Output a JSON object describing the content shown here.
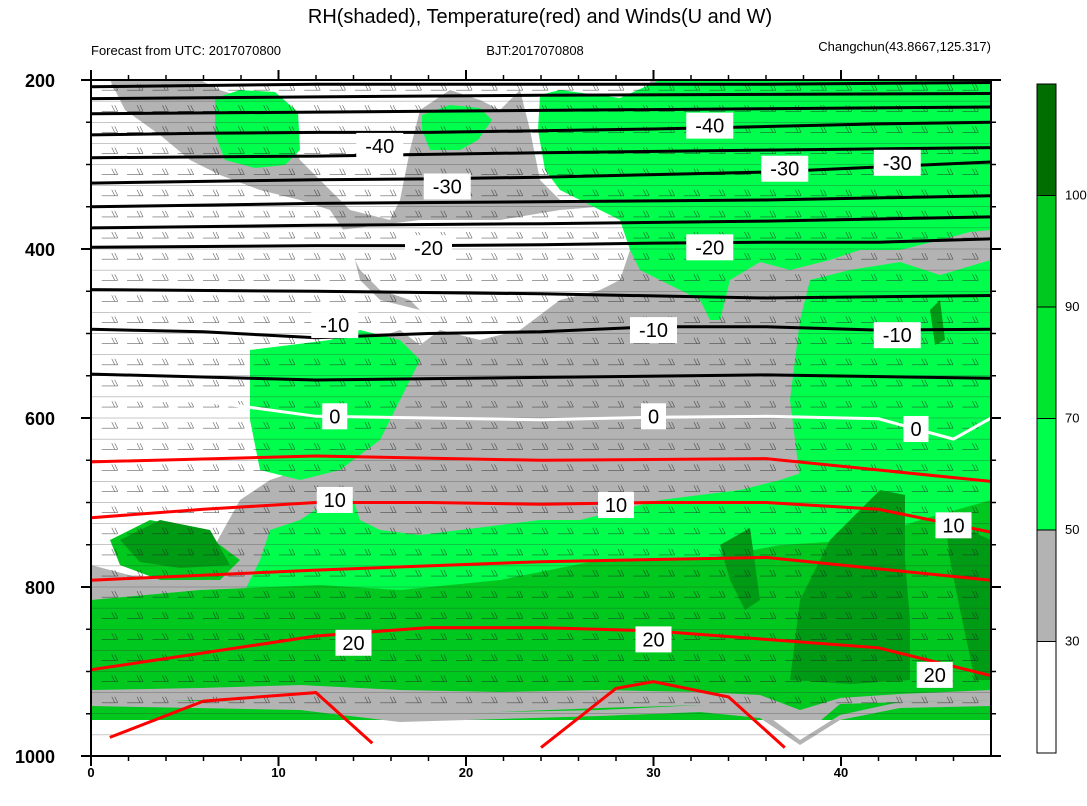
{
  "title": "RH(shaded), Temperature(red) and Winds(U and W)",
  "subtitle_left": "Forecast from UTC: 2017070800",
  "subtitle_center": "BJT:2017070808",
  "subtitle_right": "Changchun(43.8667,125.317)",
  "colors": {
    "white": "#ffffff",
    "gray": "#b3b3b3",
    "green1": "#00ff4c",
    "green2": "#00e62e",
    "green3": "#00c81e",
    "green4": "#009b14",
    "green5": "#006e00",
    "temp_red": "#ff0000",
    "temp_zero": "#ffffff",
    "temp_black": "#000000"
  },
  "chart_data": {
    "type": "heatmap",
    "title": "RH(shaded), Temperature(red) and Winds(U and W)",
    "xlim": [
      0,
      48
    ],
    "ylim": [
      1000,
      200
    ],
    "x_ticks": [
      "0",
      "10",
      "20",
      "30",
      "40"
    ],
    "x_tick_values": [
      0,
      10,
      20,
      30,
      40
    ],
    "y_ticks": [
      "200",
      "400",
      "600",
      "800",
      "1000"
    ],
    "y_tick_values": [
      200,
      400,
      600,
      800,
      1000
    ],
    "y_scale": "linear",
    "colorbar": {
      "levels": [
        30,
        50,
        70,
        90,
        100
      ],
      "labels": [
        "30",
        "50",
        "70",
        "90",
        "100"
      ],
      "colors": [
        "#ffffff",
        "#b3b3b3",
        "#00ff4c",
        "#00e62e",
        "#00c81e",
        "#006e00"
      ]
    },
    "temperature_contours": [
      {
        "label": "-40",
        "values_x": [
          0,
          6,
          12,
          18,
          24,
          30,
          36,
          42,
          48
        ],
        "pressure": [
          265,
          263,
          262,
          262,
          260,
          258,
          255,
          252,
          250
        ],
        "color": "#000000",
        "label_x": 15,
        "label_p": 280
      },
      {
        "label": "-30",
        "values_x": [
          0,
          6,
          12,
          18,
          24,
          30,
          36,
          42,
          48
        ],
        "pressure": [
          322,
          320,
          318,
          317,
          315,
          312,
          309,
          303,
          297
        ],
        "color": "#000000",
        "label_x": 19,
        "label_p": 325
      },
      {
        "label": "-20",
        "values_x": [
          0,
          6,
          12,
          18,
          24,
          30,
          36,
          42,
          48
        ],
        "pressure": [
          398,
          397,
          396,
          396,
          395,
          393,
          392,
          392,
          388
        ],
        "color": "#000000",
        "label_x": 18,
        "label_p": 400
      },
      {
        "label": "-10",
        "values_x": [
          0,
          6,
          12,
          18,
          24,
          30,
          36,
          42,
          48
        ],
        "pressure": [
          495,
          498,
          505,
          500,
          498,
          492,
          492,
          496,
          495
        ],
        "color": "#000000",
        "label_x": 13,
        "label_p": 490
      },
      {
        "label": "0",
        "values_x": [
          0,
          6,
          12,
          18,
          24,
          30,
          36,
          42,
          46,
          48
        ],
        "pressure": [
          578,
          580,
          598,
          600,
          602,
          599,
          598,
          601,
          625,
          600
        ],
        "color": "#ffffff",
        "label_x": 13,
        "label_p": 598
      },
      {
        "label": "10",
        "values_x": [
          0,
          6,
          12,
          18,
          24,
          30,
          36,
          42,
          48
        ],
        "pressure": [
          718,
          708,
          700,
          700,
          702,
          700,
          700,
          708,
          735
        ],
        "color": "#ff0000",
        "label_x": 13,
        "label_p": 696
      },
      {
        "label": "20",
        "values_x": [
          0,
          6,
          12,
          18,
          24,
          30,
          36,
          42,
          48
        ],
        "pressure": [
          898,
          878,
          858,
          848,
          848,
          852,
          862,
          872,
          905
        ],
        "color": "#ff0000",
        "label_x": 14,
        "label_p": 866
      }
    ],
    "contour_labels": [
      "-40",
      "-30",
      "-20",
      "-10",
      "0",
      "10",
      "20",
      "-40",
      "-30",
      "-20",
      "-10",
      "0",
      "10",
      "20",
      "-30",
      "-10",
      "0",
      "10",
      "20"
    ],
    "contour_label_positions": [
      {
        "x": 15.4,
        "p": 278
      },
      {
        "x": 19.0,
        "p": 326
      },
      {
        "x": 18.0,
        "p": 399
      },
      {
        "x": 13.0,
        "p": 490
      },
      {
        "x": 13.0,
        "p": 598
      },
      {
        "x": 13.0,
        "p": 697
      },
      {
        "x": 14.0,
        "p": 866
      },
      {
        "x": 33.0,
        "p": 254
      },
      {
        "x": 37.0,
        "p": 305
      },
      {
        "x": 33.0,
        "p": 398
      },
      {
        "x": 30.0,
        "p": 496
      },
      {
        "x": 30.0,
        "p": 598
      },
      {
        "x": 28.0,
        "p": 703
      },
      {
        "x": 30.0,
        "p": 862
      },
      {
        "x": 43.0,
        "p": 298
      },
      {
        "x": 43.0,
        "p": 502
      },
      {
        "x": 44.0,
        "p": 613
      },
      {
        "x": 46.0,
        "p": 727
      },
      {
        "x": 45.0,
        "p": 904
      }
    ]
  }
}
